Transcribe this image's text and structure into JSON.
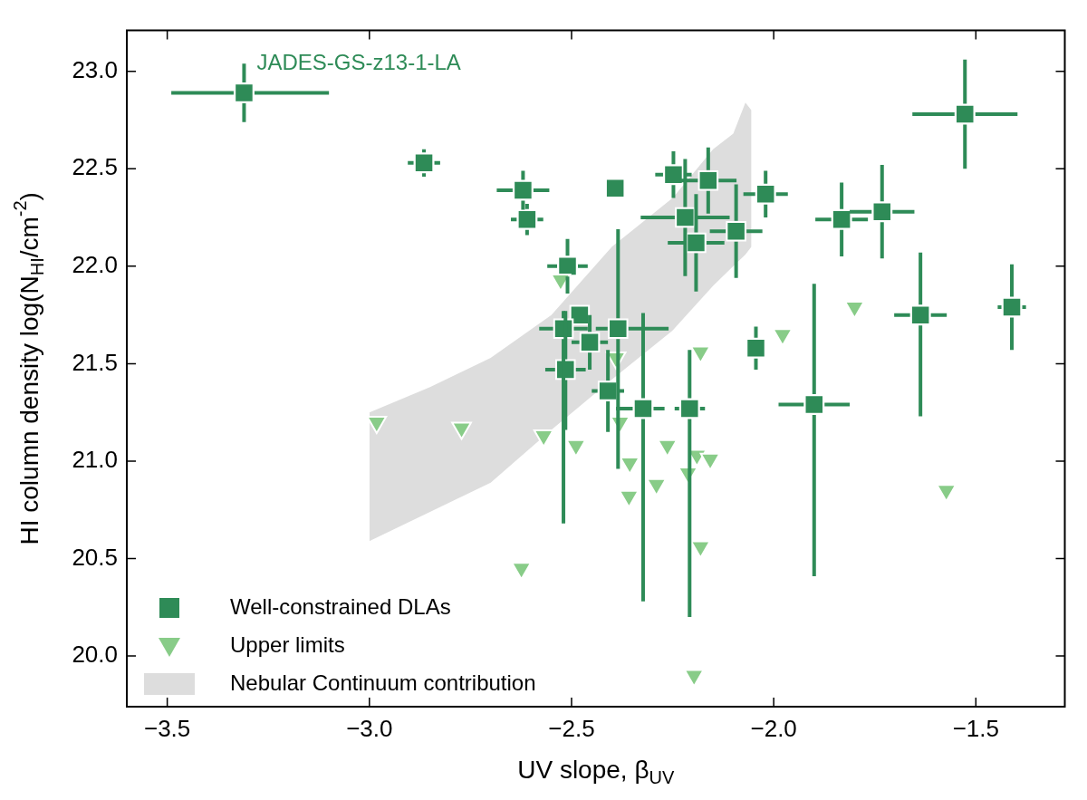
{
  "chart_data": {
    "type": "scatter",
    "xlabel": "UV slope, β$_{UV}$",
    "ylabel": "HI column density log(N$_{HI}$/cm$^{-2}$)",
    "xlim": [
      -3.6,
      -1.28
    ],
    "xticks": [
      {
        "value": -3.5,
        "label": "−3.5"
      },
      {
        "value": -3.0,
        "label": "−3.0"
      },
      {
        "value": -2.5,
        "label": "−2.5"
      },
      {
        "value": -2.0,
        "label": "−2.0"
      },
      {
        "value": -1.5,
        "label": "−1.5"
      }
    ],
    "ylim": [
      19.74,
      23.21
    ],
    "yticks": [
      {
        "value": 20,
        "label": "20.0"
      },
      20.5,
      {
        "value": 21,
        "label": "21.0"
      },
      21.5,
      {
        "value": 22,
        "label": "22.0"
      },
      22.5,
      {
        "value": 23,
        "label": "23.0"
      }
    ],
    "grid": false,
    "legend": "bottom left",
    "annotations": [
      {
        "text": "JADES-GS-z13-1-LA",
        "x": -3.31,
        "y": 22.89
      }
    ],
    "series": [
      {
        "type": "scatter",
        "name": "Well-constrained DLAs",
        "color": "#2e8b57",
        "marker": "square",
        "x": [
          -3.31,
          -2.865,
          -2.62,
          -2.61,
          -2.51,
          -2.48,
          -2.52,
          -2.455,
          -2.515,
          -2.41,
          -2.385,
          -2.392,
          -2.248,
          -2.162,
          -2.219,
          -2.192,
          -2.093,
          -2.02,
          -2.323,
          -2.208,
          -2.044,
          -1.9,
          -1.832,
          -1.732,
          -1.527,
          -1.637,
          -1.411
        ],
        "values": [
          22.89,
          22.53,
          22.39,
          22.24,
          22.0,
          21.75,
          21.68,
          21.61,
          21.47,
          21.36,
          21.68,
          22.4,
          22.47,
          22.44,
          22.25,
          22.12,
          22.18,
          22.37,
          21.27,
          21.27,
          21.58,
          21.29,
          22.24,
          22.28,
          22.78,
          21.75,
          21.79
        ],
        "errors": [
          0.15,
          0.07,
          0.1,
          0.08,
          0.14,
          null,
          [
            20.68,
            21.77
          ],
          0.14,
          [
            21.16,
            21.77
          ],
          0.21,
          [
            20.96,
            22.19
          ],
          null,
          0.12,
          0.17,
          0.3,
          0.25,
          0.24,
          0.12,
          [
            20.28,
            21.76
          ],
          [
            20.2,
            21.57
          ],
          0.11,
          [
            20.41,
            21.91
          ],
          0.19,
          0.24,
          0.28,
          [
            21.23,
            22.07
          ],
          0.22
        ],
        "xerrors": [
          [
            -3.49,
            -3.1
          ],
          0.04,
          0.065,
          0.04,
          0.05,
          null,
          0.06,
          0.045,
          0.05,
          0.04,
          [
            -2.44,
            -2.26
          ],
          null,
          0.045,
          0.07,
          0.11,
          0.07,
          0.065,
          0.055,
          [
            -2.39,
            -2.27
          ],
          [
            -2.245,
            -2.17
          ],
          null,
          0.088,
          0.065,
          0.08,
          0.13,
          0.065,
          0.035
        ]
      },
      {
        "type": "scatter",
        "name": "Upper limits",
        "color": "#88cc88",
        "marker": "triangle",
        "x": [
          -2.527,
          -2.982,
          -2.772,
          -2.569,
          -2.489,
          -2.38,
          -2.39,
          -2.181,
          -2.356,
          -2.263,
          -2.19,
          -2.157,
          -2.29,
          -2.212,
          -2.358,
          -2.181,
          -2.624,
          -2.197,
          -1.978,
          -1.8,
          -1.573
        ],
        "values": [
          21.93,
          21.2,
          21.17,
          21.13,
          21.08,
          21.2,
          21.53,
          21.56,
          20.99,
          21.08,
          21.03,
          21.01,
          20.88,
          20.94,
          20.82,
          20.56,
          20.45,
          19.9,
          21.65,
          21.79,
          20.85
        ]
      },
      {
        "type": "area",
        "name": "Nebular Continuum contribution",
        "color": "#dddddd",
        "x": [
          -3.0,
          -2.85,
          -2.7,
          -2.55,
          -2.4,
          -2.25,
          -2.15,
          -2.1,
          -2.07,
          -2.055
        ],
        "values": [
          null,
          null,
          null,
          null,
          null,
          null,
          null,
          null,
          null,
          null
        ],
        "lower": [
          20.59,
          20.74,
          20.89,
          21.16,
          21.42,
          21.67,
          21.9,
          22.0,
          22.06,
          22.1
        ],
        "upper": [
          21.25,
          21.38,
          21.53,
          21.75,
          22.1,
          22.35,
          22.6,
          22.68,
          22.84,
          22.8
        ]
      }
    ]
  }
}
